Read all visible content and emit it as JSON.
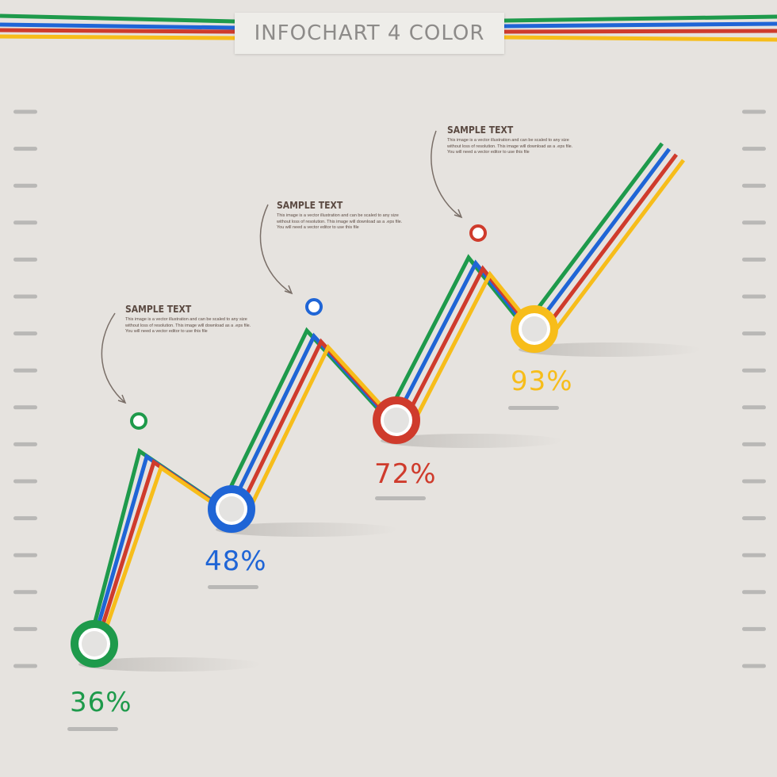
{
  "title": "INFOCHART 4 COLOR",
  "colors": {
    "background": "#e6e3df",
    "green": "#1e9a4b",
    "blue": "#1f65d6",
    "red": "#cf3b2c",
    "yellow": "#f7bd1a",
    "tick": "#b9b8b6",
    "text": "#5b4a42"
  },
  "notes": [
    {
      "heading": "SAMPLE TEXT",
      "body": "This image is a vector illustration and can be scaled to any size without loss of resolution. This image will download as a .eps file. You will need a vector editor to use this file"
    },
    {
      "heading": "SAMPLE TEXT",
      "body": "This image is a vector illustration and can be scaled to any size without loss of resolution. This image will download as a .eps file. You will need a vector editor to use this file"
    },
    {
      "heading": "SAMPLE TEXT",
      "body": "This image is a vector illustration and can be scaled to any size without loss of resolution. This image will download as a .eps file. You will need a vector editor to use this file"
    }
  ],
  "chart_data": {
    "type": "line",
    "categories": [
      "36%",
      "48%",
      "72%",
      "93%"
    ],
    "values": [
      36,
      48,
      72,
      93
    ],
    "series": [
      {
        "color": "green"
      },
      {
        "color": "blue"
      },
      {
        "color": "red"
      },
      {
        "color": "yellow"
      }
    ],
    "point_labels": [
      "36%",
      "48%",
      "72%",
      "93%"
    ],
    "point_colors": [
      "green",
      "blue",
      "red",
      "yellow"
    ],
    "grid": false,
    "side_ticks": 16
  }
}
